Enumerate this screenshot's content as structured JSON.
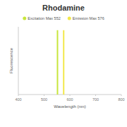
{
  "chart_data": {
    "type": "line",
    "title": "Rhodamine",
    "xlabel": "Wavelength (nm)",
    "ylabel": "Fluorescence",
    "xlim": [
      400,
      800
    ],
    "xticks": [
      400,
      500,
      600,
      700,
      800
    ],
    "ylim": [
      0,
      100
    ],
    "tick_labels": "x",
    "legend": "top",
    "series": [
      {
        "name": "Excitation Max 552",
        "color": "#c8e63c",
        "x": [
          552,
          552
        ],
        "values": [
          0,
          95
        ]
      },
      {
        "name": "Emission Max 576",
        "color": "#f2e84a",
        "x": [
          576,
          576
        ],
        "values": [
          0,
          95
        ]
      }
    ]
  }
}
